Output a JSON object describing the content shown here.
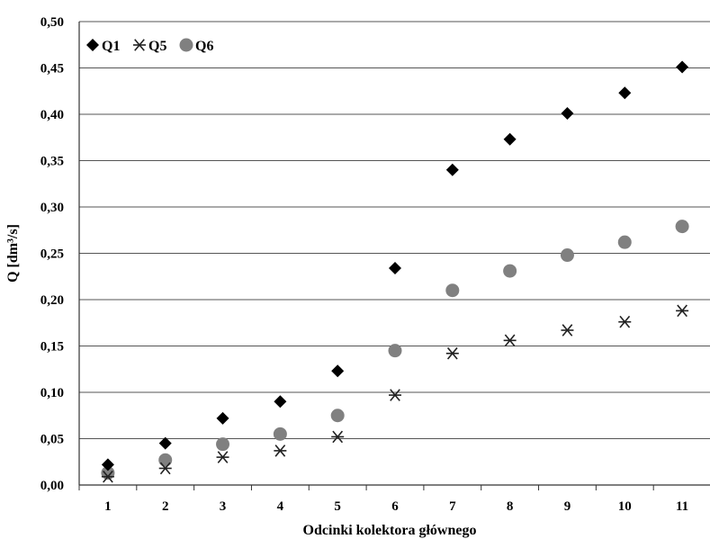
{
  "chart_data": {
    "type": "scatter",
    "title": "",
    "xlabel": "Odcinki kolektora głównego",
    "ylabel": "Q [dm³/s]",
    "x": [
      1,
      2,
      3,
      4,
      5,
      6,
      7,
      8,
      9,
      10,
      11
    ],
    "x_tick_labels": [
      "1",
      "2",
      "3",
      "4",
      "5",
      "6",
      "7",
      "8",
      "9",
      "10",
      "11"
    ],
    "ylim": [
      0,
      0.5
    ],
    "y_tick_labels": [
      "0,00",
      "0,05",
      "0,10",
      "0,15",
      "0,20",
      "0,25",
      "0,30",
      "0,35",
      "0,40",
      "0,45",
      "0,50"
    ],
    "grid": "horizontal",
    "legend_position": "top-left",
    "series": [
      {
        "name": "Q1",
        "marker": "diamond",
        "color": "#000000",
        "values": [
          0.022,
          0.045,
          0.072,
          0.09,
          0.123,
          0.234,
          0.34,
          0.373,
          0.401,
          0.423,
          0.451
        ]
      },
      {
        "name": "Q5",
        "marker": "asterisk",
        "color": "#222222",
        "values": [
          0.009,
          0.018,
          0.03,
          0.037,
          0.052,
          0.097,
          0.142,
          0.156,
          0.167,
          0.176,
          0.188
        ]
      },
      {
        "name": "Q6",
        "marker": "circle",
        "color": "#808080",
        "values": [
          0.013,
          0.027,
          0.044,
          0.055,
          0.075,
          0.145,
          0.21,
          0.231,
          0.248,
          0.262,
          0.279
        ]
      }
    ]
  }
}
